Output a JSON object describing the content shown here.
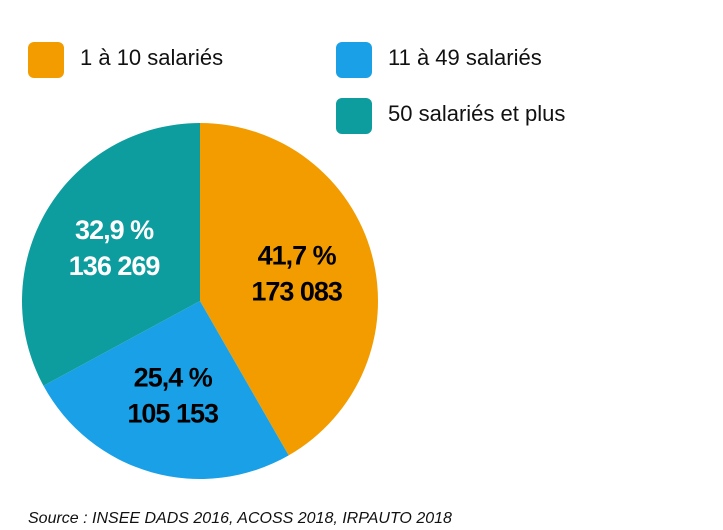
{
  "chart_data": {
    "type": "pie",
    "categories": [
      "1 à 10 salariés",
      "11 à 49 salariés",
      "50 salariés et plus"
    ],
    "values": [
      41.7,
      25.4,
      32.9
    ],
    "value_labels": [
      "41,7 %",
      "25,4 %",
      "32,9 %"
    ],
    "counts": [
      173083,
      105153,
      136269
    ],
    "count_labels": [
      "173 083",
      "105 153",
      "136 269"
    ],
    "colors": [
      "#f39c00",
      "#1aa0e6",
      "#0e9d9e"
    ],
    "label_colors": [
      "#000000",
      "#000000",
      "#ffffff"
    ],
    "source": "Source : INSEE DADS 2016, ACOSS 2018, IRPAUTO 2018"
  }
}
